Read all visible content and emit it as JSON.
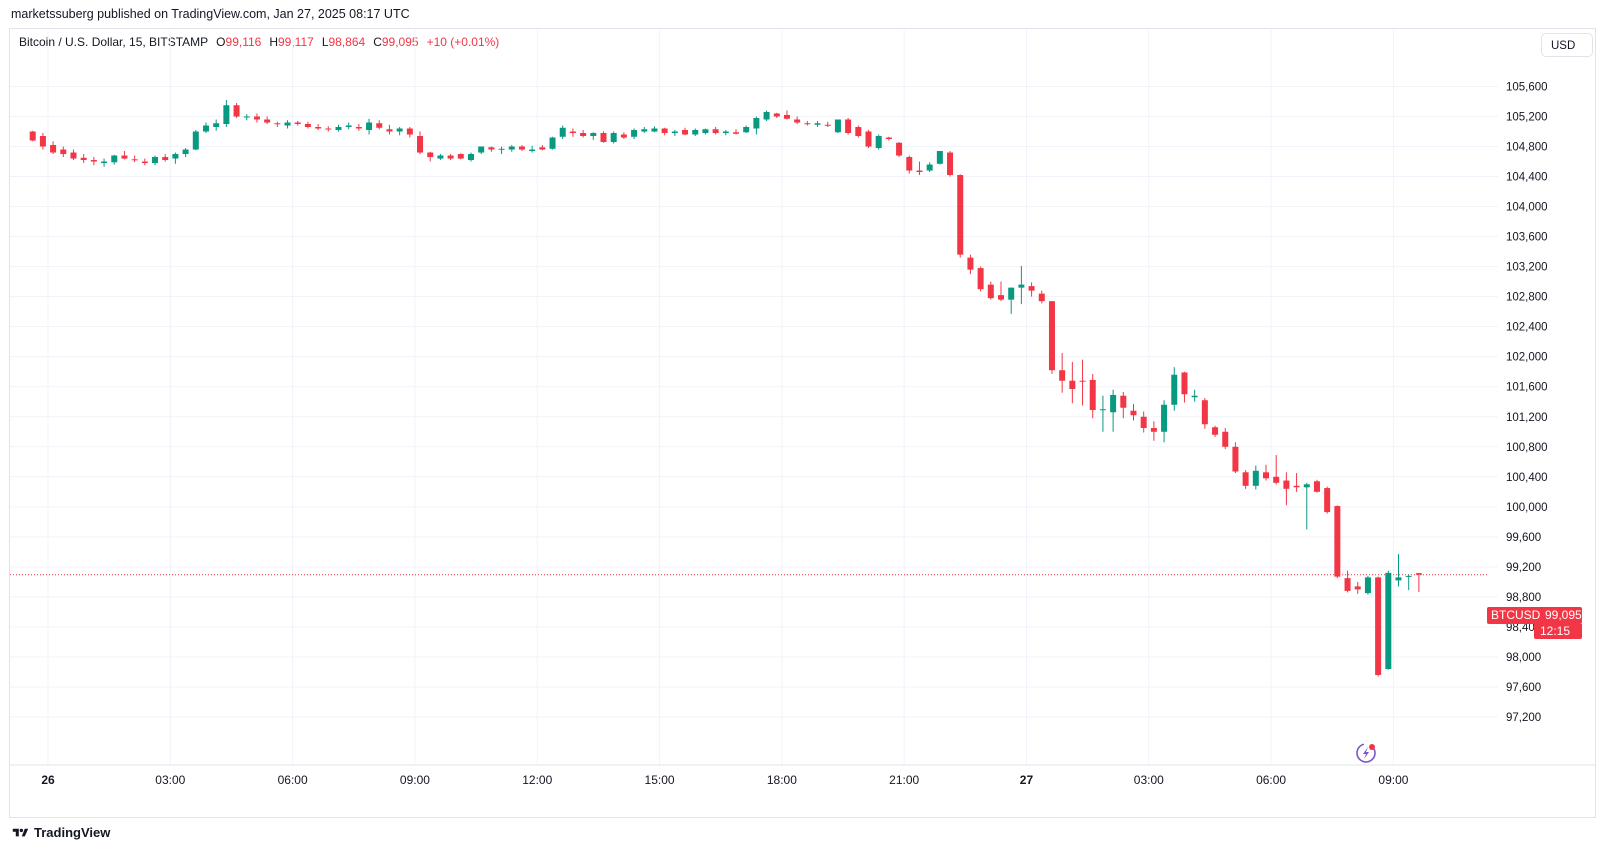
{
  "header": {
    "published_line": "marketssuberg published on TradingView.com, Jan 27, 2025 08:17 UTC"
  },
  "legend": {
    "symbol_line": "Bitcoin / U.S. Dollar, 15, BITSTAMP",
    "open_label": "O",
    "open_value": "99,116",
    "high_label": "H",
    "high_value": "99,117",
    "low_label": "L",
    "low_value": "98,864",
    "close_label": "C",
    "close_value": "99,095",
    "change": "+10 (+0.01%)"
  },
  "toolbar": {
    "currency_label": "USD"
  },
  "last_price": {
    "symbol": "BTCUSD",
    "value": "99,095",
    "countdown": "12:15"
  },
  "footer": {
    "brand": "TradingView"
  },
  "colors": {
    "up": "#089981",
    "down": "#f23645",
    "grid": "#f0f3fa",
    "text": "#131722"
  },
  "chart_data": {
    "type": "candlestick",
    "interval": "15",
    "ylim": [
      97000,
      106000
    ],
    "y_ticks": [
      97200,
      97600,
      98000,
      98400,
      98800,
      99200,
      99600,
      100000,
      100400,
      100800,
      101200,
      101600,
      102000,
      102400,
      102800,
      103200,
      103600,
      104000,
      104400,
      104800,
      105200,
      105600
    ],
    "y_tick_labels": [
      "97,200",
      "97,600",
      "98,000",
      "98,400",
      "98,800",
      "99,200",
      "99,600",
      "100,000",
      "100,400",
      "100,800",
      "101,200",
      "101,600",
      "102,000",
      "102,400",
      "102,800",
      "103,200",
      "103,600",
      "104,000",
      "104,400",
      "104,800",
      "105,200",
      "105,600"
    ],
    "x_ticks": [
      {
        "label": "26",
        "hour": 0,
        "bold": true
      },
      {
        "label": "03:00",
        "hour": 3,
        "bold": false
      },
      {
        "label": "06:00",
        "hour": 6,
        "bold": false
      },
      {
        "label": "09:00",
        "hour": 9,
        "bold": false
      },
      {
        "label": "12:00",
        "hour": 12,
        "bold": false
      },
      {
        "label": "15:00",
        "hour": 15,
        "bold": false
      },
      {
        "label": "18:00",
        "hour": 18,
        "bold": false
      },
      {
        "label": "21:00",
        "hour": 21,
        "bold": false
      },
      {
        "label": "27",
        "hour": 24,
        "bold": true
      },
      {
        "label": "03:00",
        "hour": 27,
        "bold": false
      },
      {
        "label": "06:00",
        "hour": 30,
        "bold": false
      },
      {
        "label": "09:00",
        "hour": 33,
        "bold": false
      }
    ],
    "last_price_line": 99095,
    "candles": [
      [
        105000,
        105010,
        104870,
        104880
      ],
      [
        104940,
        104980,
        104760,
        104800
      ],
      [
        104820,
        104870,
        104700,
        104720
      ],
      [
        104760,
        104800,
        104660,
        104700
      ],
      [
        104720,
        104760,
        104620,
        104640
      ],
      [
        104650,
        104700,
        104580,
        104620
      ],
      [
        104620,
        104660,
        104550,
        104600
      ],
      [
        104580,
        104640,
        104530,
        104600
      ],
      [
        104590,
        104690,
        104560,
        104680
      ],
      [
        104680,
        104740,
        104630,
        104640
      ],
      [
        104630,
        104680,
        104590,
        104620
      ],
      [
        104600,
        104640,
        104550,
        104580
      ],
      [
        104580,
        104680,
        104550,
        104660
      ],
      [
        104660,
        104700,
        104600,
        104620
      ],
      [
        104640,
        104720,
        104570,
        104700
      ],
      [
        104700,
        104780,
        104660,
        104760
      ],
      [
        104760,
        105020,
        104750,
        105000
      ],
      [
        105000,
        105120,
        104980,
        105080
      ],
      [
        105060,
        105160,
        105010,
        105110
      ],
      [
        105100,
        105420,
        105060,
        105350
      ],
      [
        105350,
        105380,
        105180,
        105200
      ],
      [
        105190,
        105230,
        105150,
        105200
      ],
      [
        105200,
        105240,
        105120,
        105160
      ],
      [
        105160,
        105200,
        105100,
        105120
      ],
      [
        105110,
        105130,
        105060,
        105100
      ],
      [
        105080,
        105150,
        105040,
        105120
      ],
      [
        105120,
        105140,
        105080,
        105100
      ],
      [
        105100,
        105130,
        105040,
        105060
      ],
      [
        105060,
        105100,
        105020,
        105040
      ],
      [
        105040,
        105070,
        105000,
        105030
      ],
      [
        105020,
        105090,
        105000,
        105060
      ],
      [
        105060,
        105120,
        105030,
        105080
      ],
      [
        105060,
        105100,
        105010,
        105040
      ],
      [
        105020,
        105170,
        104960,
        105120
      ],
      [
        105110,
        105150,
        105030,
        105050
      ],
      [
        105030,
        105090,
        104960,
        105000
      ],
      [
        105000,
        105060,
        104950,
        105040
      ],
      [
        105040,
        105060,
        104920,
        104960
      ],
      [
        104940,
        105000,
        104700,
        104720
      ],
      [
        104720,
        104730,
        104600,
        104660
      ],
      [
        104640,
        104700,
        104620,
        104680
      ],
      [
        104680,
        104700,
        104620,
        104640
      ],
      [
        104700,
        104710,
        104630,
        104640
      ],
      [
        104620,
        104720,
        104600,
        104700
      ],
      [
        104720,
        104800,
        104700,
        104800
      ],
      [
        104790,
        104800,
        104730,
        104760
      ],
      [
        104760,
        104800,
        104700,
        104770
      ],
      [
        104760,
        104820,
        104730,
        104800
      ],
      [
        104800,
        104820,
        104740,
        104760
      ],
      [
        104740,
        104810,
        104720,
        104760
      ],
      [
        104790,
        104820,
        104750,
        104760
      ],
      [
        104770,
        104930,
        104760,
        104920
      ],
      [
        104930,
        105080,
        104900,
        105050
      ],
      [
        105000,
        105040,
        104930,
        104980
      ],
      [
        104980,
        105020,
        104920,
        104940
      ],
      [
        104940,
        104990,
        104890,
        104980
      ],
      [
        104980,
        105000,
        104850,
        104860
      ],
      [
        104860,
        105000,
        104840,
        104980
      ],
      [
        104960,
        104990,
        104900,
        104920
      ],
      [
        104930,
        105040,
        104900,
        105020
      ],
      [
        105000,
        105060,
        104980,
        105030
      ],
      [
        105000,
        105070,
        104990,
        105040
      ],
      [
        105040,
        105050,
        104950,
        104980
      ],
      [
        104980,
        105020,
        104940,
        105000
      ],
      [
        105020,
        105050,
        104950,
        104960
      ],
      [
        104960,
        105040,
        104940,
        105020
      ],
      [
        104980,
        105040,
        104960,
        105030
      ],
      [
        105030,
        105060,
        104960,
        104980
      ],
      [
        104980,
        105020,
        104950,
        105000
      ],
      [
        104990,
        105030,
        104960,
        104970
      ],
      [
        104990,
        105080,
        104980,
        105060
      ],
      [
        105040,
        105200,
        104960,
        105180
      ],
      [
        105160,
        105280,
        105140,
        105260
      ],
      [
        105240,
        105250,
        105180,
        105200
      ],
      [
        105220,
        105280,
        105160,
        105170
      ],
      [
        105160,
        105200,
        105100,
        105120
      ],
      [
        105110,
        105140,
        105080,
        105100
      ],
      [
        105090,
        105140,
        105060,
        105110
      ],
      [
        105090,
        105130,
        105060,
        105080
      ],
      [
        104990,
        105160,
        104980,
        105160
      ],
      [
        105160,
        105180,
        104960,
        104980
      ],
      [
        105060,
        105080,
        104920,
        104940
      ],
      [
        105000,
        105020,
        104780,
        104800
      ],
      [
        104780,
        104960,
        104760,
        104940
      ],
      [
        104920,
        104930,
        104880,
        104900
      ],
      [
        104850,
        104860,
        104660,
        104680
      ],
      [
        104660,
        104680,
        104440,
        104480
      ],
      [
        104480,
        104600,
        104420,
        104460
      ],
      [
        104480,
        104590,
        104460,
        104560
      ],
      [
        104570,
        104740,
        104560,
        104740
      ],
      [
        104720,
        104740,
        104400,
        104420
      ],
      [
        104420,
        104430,
        103320,
        103360
      ],
      [
        103320,
        103360,
        103100,
        103160
      ],
      [
        103180,
        103200,
        102870,
        102900
      ],
      [
        102960,
        103000,
        102760,
        102780
      ],
      [
        102820,
        103000,
        102740,
        102760
      ],
      [
        102760,
        102920,
        102570,
        102920
      ],
      [
        102920,
        103210,
        102700,
        102960
      ],
      [
        102940,
        102990,
        102800,
        102880
      ],
      [
        102840,
        102880,
        102710,
        102740
      ],
      [
        102740,
        102740,
        101770,
        101820
      ],
      [
        101820,
        102050,
        101520,
        101680
      ],
      [
        101680,
        101930,
        101380,
        101570
      ],
      [
        101680,
        101960,
        101350,
        101670
      ],
      [
        101690,
        101770,
        101180,
        101290
      ],
      [
        101290,
        101480,
        101000,
        101300
      ],
      [
        101260,
        101560,
        101000,
        101490
      ],
      [
        101480,
        101530,
        101180,
        101320
      ],
      [
        101280,
        101370,
        101150,
        101220
      ],
      [
        101200,
        101270,
        100990,
        101050
      ],
      [
        101050,
        101140,
        100880,
        101000
      ],
      [
        101000,
        101420,
        100860,
        101360
      ],
      [
        101360,
        101860,
        101280,
        101760
      ],
      [
        101790,
        101800,
        101390,
        101500
      ],
      [
        101460,
        101560,
        101400,
        101480
      ],
      [
        101420,
        101450,
        101040,
        101100
      ],
      [
        101060,
        101080,
        100930,
        100960
      ],
      [
        101000,
        101050,
        100770,
        100800
      ],
      [
        100800,
        100860,
        100450,
        100470
      ],
      [
        100460,
        100490,
        100240,
        100280
      ],
      [
        100280,
        100550,
        100230,
        100480
      ],
      [
        100460,
        100560,
        100350,
        100380
      ],
      [
        100400,
        100690,
        100300,
        100320
      ],
      [
        100350,
        100460,
        100020,
        100240
      ],
      [
        100280,
        100450,
        100200,
        100260
      ],
      [
        100260,
        100320,
        99700,
        100300
      ],
      [
        100340,
        100360,
        100190,
        100200
      ],
      [
        100250,
        100270,
        99910,
        99930
      ],
      [
        100010,
        100020,
        99050,
        99070
      ],
      [
        99050,
        99150,
        98860,
        98880
      ],
      [
        98940,
        99000,
        98840,
        98900
      ],
      [
        98850,
        99080,
        98830,
        99060
      ],
      [
        99060,
        99070,
        97740,
        97760
      ],
      [
        97840,
        99150,
        97830,
        99120
      ],
      [
        99020,
        99370,
        98940,
        99060
      ],
      [
        99070,
        99100,
        98890,
        99080
      ],
      [
        99116,
        99117,
        98864,
        99095
      ]
    ]
  }
}
